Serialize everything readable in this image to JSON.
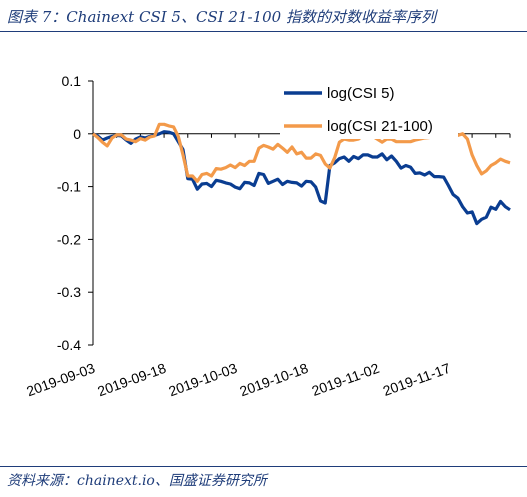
{
  "title": "图表 7：Chainext CSI 5、CSI 21-100 指数的对数收益率序列",
  "source": "资料来源：chainext.io、国盛证券研究所",
  "chart_data": {
    "type": "line",
    "ylim": [
      -0.4,
      0.1
    ],
    "yticks": [
      0.1,
      0,
      -0.1,
      -0.2,
      -0.3,
      -0.4
    ],
    "ytick_labels": [
      "0.1",
      "0",
      "-0.1",
      "-0.2",
      "-0.3",
      "-0.4"
    ],
    "xtick_labels": [
      "2019-09-03",
      "2019-09-18",
      "2019-10-03",
      "2019-10-18",
      "2019-11-02",
      "2019-11-17"
    ],
    "xtick_index": [
      0,
      15,
      30,
      45,
      60,
      75
    ],
    "n_points": 89,
    "legend_position": "top-right",
    "series": [
      {
        "name": "log(CSI 5)",
        "color": "#0a3d91",
        "values": [
          0.0,
          -0.004,
          -0.012,
          -0.008,
          -0.005,
          -0.003,
          -0.004,
          -0.012,
          -0.018,
          -0.01,
          -0.006,
          -0.008,
          -0.005,
          -0.003,
          0.0,
          0.004,
          0.003,
          0.0,
          -0.015,
          -0.03,
          -0.085,
          -0.086,
          -0.105,
          -0.095,
          -0.094,
          -0.1,
          -0.088,
          -0.09,
          -0.093,
          -0.095,
          -0.101,
          -0.104,
          -0.092,
          -0.093,
          -0.098,
          -0.075,
          -0.077,
          -0.094,
          -0.09,
          -0.086,
          -0.096,
          -0.09,
          -0.092,
          -0.093,
          -0.099,
          -0.09,
          -0.091,
          -0.101,
          -0.127,
          -0.131,
          -0.06,
          -0.055,
          -0.047,
          -0.044,
          -0.052,
          -0.043,
          -0.047,
          -0.04,
          -0.04,
          -0.044,
          -0.044,
          -0.038,
          -0.049,
          -0.042,
          -0.052,
          -0.065,
          -0.06,
          -0.063,
          -0.075,
          -0.074,
          -0.078,
          -0.073,
          -0.081,
          -0.081,
          -0.082,
          -0.098,
          -0.115,
          -0.122,
          -0.138,
          -0.15,
          -0.148,
          -0.17,
          -0.162,
          -0.158,
          -0.139,
          -0.143,
          -0.128,
          -0.138,
          -0.144
        ]
      },
      {
        "name": "log(CSI 21-100)",
        "color": "#f39a4a",
        "values": [
          0.0,
          -0.007,
          -0.016,
          -0.023,
          -0.008,
          -0.002,
          -0.002,
          -0.01,
          -0.012,
          -0.015,
          -0.009,
          -0.012,
          -0.006,
          -0.004,
          0.018,
          0.018,
          0.015,
          0.013,
          -0.005,
          -0.04,
          -0.08,
          -0.08,
          -0.09,
          -0.077,
          -0.075,
          -0.08,
          -0.066,
          -0.067,
          -0.064,
          -0.059,
          -0.064,
          -0.056,
          -0.06,
          -0.052,
          -0.052,
          -0.027,
          -0.022,
          -0.025,
          -0.029,
          -0.02,
          -0.027,
          -0.035,
          -0.025,
          -0.038,
          -0.035,
          -0.046,
          -0.046,
          -0.038,
          -0.041,
          -0.057,
          -0.065,
          -0.045,
          -0.016,
          -0.01,
          -0.012,
          -0.012,
          -0.01,
          -0.003,
          -0.006,
          -0.005,
          -0.01,
          -0.016,
          -0.01,
          -0.01,
          -0.015,
          -0.015,
          -0.015,
          -0.015,
          -0.012,
          -0.01,
          -0.008,
          -0.007,
          -0.005,
          -0.003,
          -0.002,
          -0.002,
          -0.003,
          -0.003,
          0.0,
          -0.01,
          -0.04,
          -0.06,
          -0.076,
          -0.07,
          -0.06,
          -0.055,
          -0.048,
          -0.052,
          -0.055
        ]
      }
    ]
  }
}
